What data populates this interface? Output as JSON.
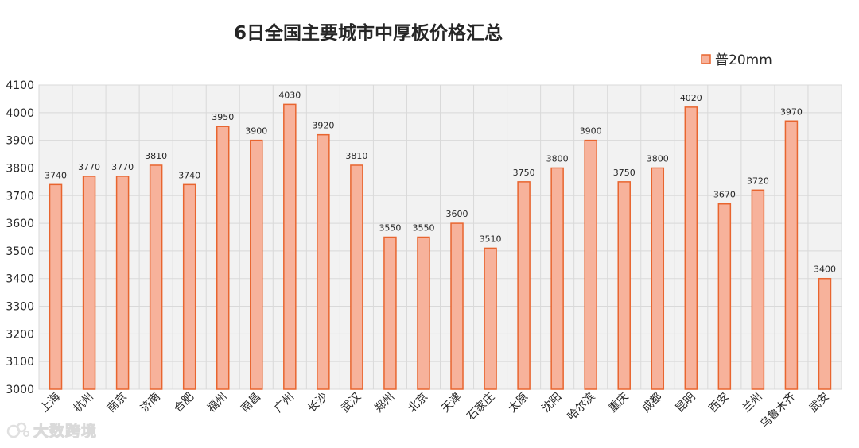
{
  "watermark": {
    "text": "大数跨境"
  },
  "colors": {
    "bar_fill": "#f7b29b",
    "bar_stroke": "#e8652f",
    "plot_bg": "#f2f2f2",
    "grid": "#d9d9d9",
    "text": "#262626"
  },
  "chart_data": {
    "type": "bar",
    "title": "6日全国主要城市中厚板价格汇总",
    "xlabel": "",
    "ylabel": "",
    "ylim": [
      3000,
      4100
    ],
    "ytick_step": 100,
    "grid": true,
    "legend_position": "top-right",
    "categories": [
      "上海",
      "杭州",
      "南京",
      "济南",
      "合肥",
      "福州",
      "南昌",
      "广州",
      "长沙",
      "武汉",
      "郑州",
      "北京",
      "天津",
      "石家庄",
      "太原",
      "沈阳",
      "哈尔滨",
      "重庆",
      "成都",
      "昆明",
      "西安",
      "兰州",
      "乌鲁木齐",
      "武安"
    ],
    "series": [
      {
        "name": "普20mm",
        "values": [
          3740,
          3770,
          3770,
          3810,
          3740,
          3950,
          3900,
          4030,
          3920,
          3810,
          3550,
          3550,
          3600,
          3510,
          3750,
          3800,
          3900,
          3750,
          3800,
          4020,
          3670,
          3720,
          3970,
          3400
        ]
      }
    ]
  }
}
